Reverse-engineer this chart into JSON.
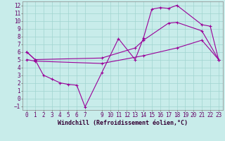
{
  "bg_color": "#c8ecea",
  "line_color": "#990099",
  "grid_color": "#a0d4d0",
  "xlabel": "Windchill (Refroidissement éolien,°C)",
  "xlabel_fontsize": 6.0,
  "tick_fontsize": 5.5,
  "xlim": [
    -0.5,
    23.5
  ],
  "ylim": [
    -1.5,
    12.5
  ],
  "xticks": [
    0,
    1,
    2,
    3,
    4,
    5,
    6,
    7,
    9,
    10,
    11,
    12,
    13,
    14,
    15,
    16,
    17,
    18,
    19,
    20,
    21,
    22,
    23
  ],
  "yticks": [
    -1,
    0,
    1,
    2,
    3,
    4,
    5,
    6,
    7,
    8,
    9,
    10,
    11,
    12
  ],
  "line1_x": [
    0,
    1,
    2,
    3,
    4,
    5,
    6,
    7,
    9,
    11,
    13,
    14,
    15,
    16,
    17,
    18,
    21,
    22,
    23
  ],
  "line1_y": [
    6.0,
    5.0,
    3.0,
    2.5,
    2.0,
    1.8,
    1.7,
    -1.1,
    3.3,
    7.7,
    5.0,
    7.8,
    11.5,
    11.7,
    11.6,
    12.0,
    9.5,
    9.3,
    5.0
  ],
  "line2_x": [
    0,
    1,
    9,
    13,
    14,
    17,
    18,
    21,
    23
  ],
  "line2_y": [
    6.0,
    5.0,
    5.2,
    6.5,
    7.5,
    9.7,
    9.8,
    8.7,
    5.0
  ],
  "line3_x": [
    0,
    1,
    9,
    14,
    18,
    21,
    23
  ],
  "line3_y": [
    5.0,
    4.8,
    4.5,
    5.5,
    6.5,
    7.5,
    5.0
  ]
}
